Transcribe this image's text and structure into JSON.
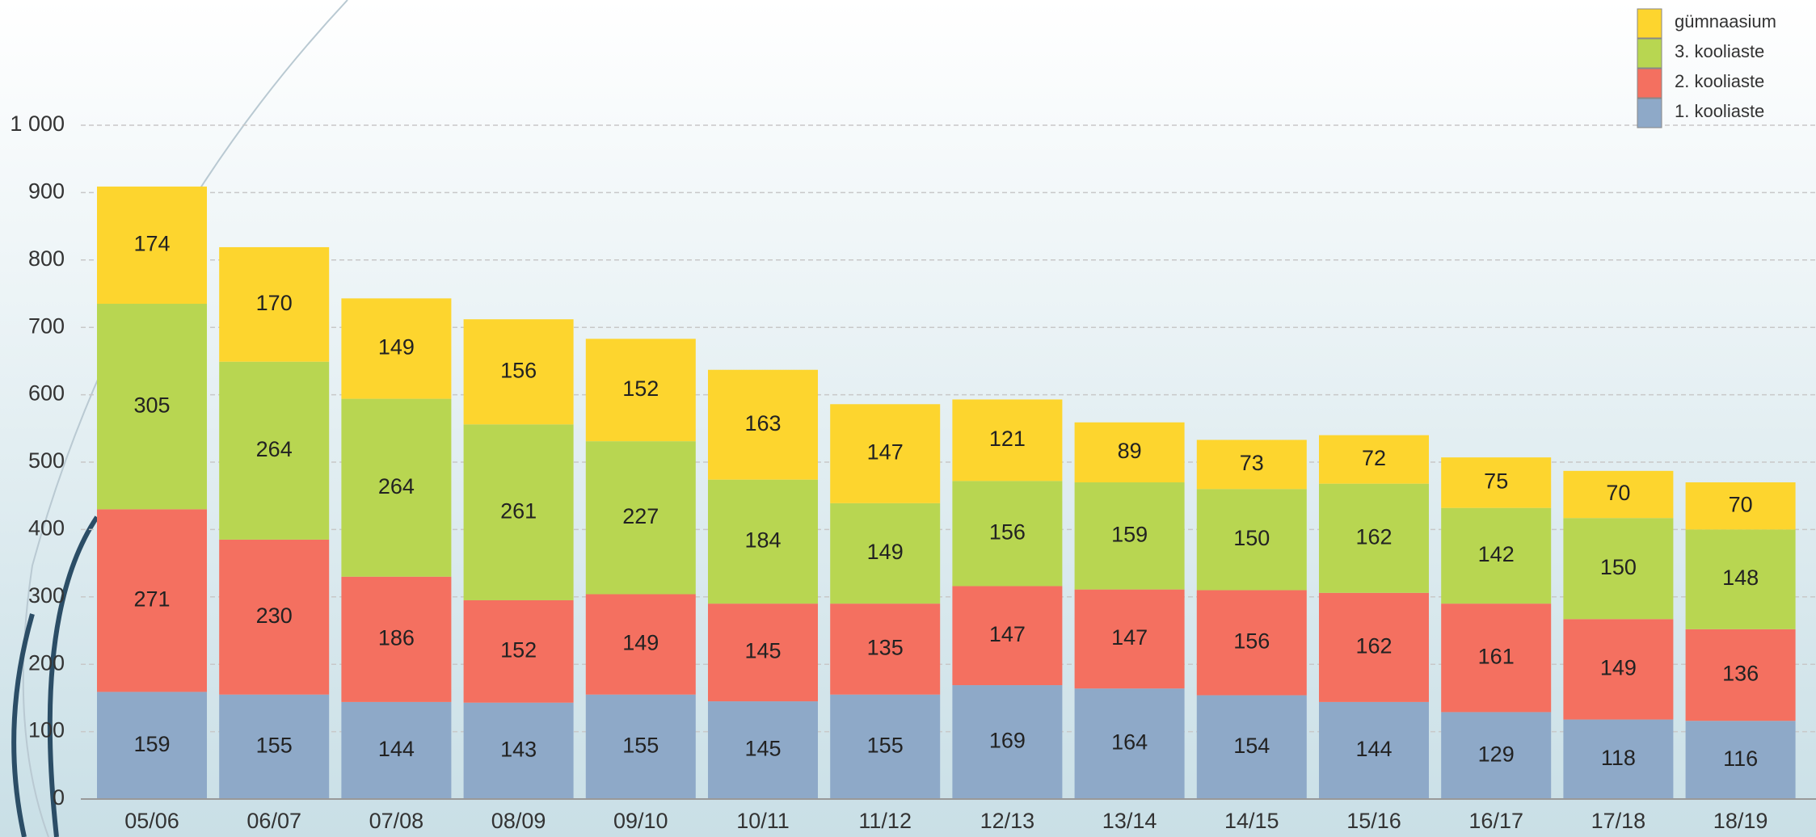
{
  "chart_data": {
    "type": "stacked-bar",
    "categories": [
      "05/06",
      "06/07",
      "07/08",
      "08/09",
      "09/10",
      "10/11",
      "11/12",
      "12/13",
      "13/14",
      "14/15",
      "15/16",
      "16/17",
      "17/18",
      "18/19"
    ],
    "series": [
      {
        "name": "1. kooliaste",
        "color": "#8ea9c8",
        "values": [
          159,
          155,
          144,
          143,
          155,
          145,
          155,
          169,
          164,
          154,
          144,
          129,
          118,
          116
        ]
      },
      {
        "name": "2. kooliaste",
        "color": "#f47060",
        "values": [
          271,
          230,
          186,
          152,
          149,
          145,
          135,
          147,
          147,
          156,
          162,
          161,
          149,
          136
        ]
      },
      {
        "name": "3. kooliaste",
        "color": "#b8d651",
        "values": [
          305,
          264,
          264,
          261,
          227,
          184,
          149,
          156,
          159,
          150,
          162,
          142,
          150,
          148
        ]
      },
      {
        "name": "gümnaasium",
        "color": "#fdd52e",
        "values": [
          174,
          170,
          149,
          156,
          152,
          163,
          147,
          121,
          89,
          73,
          72,
          75,
          70,
          70
        ]
      }
    ],
    "ylim": [
      0,
      1000
    ],
    "yticks": [
      0,
      100,
      200,
      300,
      400,
      500,
      600,
      700,
      800,
      900,
      {
        "value": 1000,
        "label": "1 000"
      }
    ],
    "grid": true,
    "legend": "top-right"
  }
}
